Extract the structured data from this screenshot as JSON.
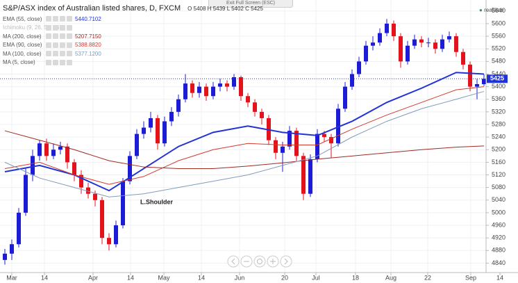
{
  "chart_data": {
    "type": "candlestick",
    "title": "S&P/ASX index of Australian listed shares, D, FXCM",
    "ohlc_letters": [
      "O",
      "H",
      "L",
      "C"
    ],
    "status": "realtime",
    "fullscreen_hint": "Exit Full Screen (ESC)",
    "annotation": "L.Shoulder",
    "up_color": "#1c1cd6",
    "down_color": "#e3121b",
    "grid": true,
    "xlim": [
      -0.7,
      69.3
    ],
    "xticks": [
      {
        "value": 1.0,
        "label": "Mar"
      },
      {
        "value": 5.7,
        "label": "14"
      },
      {
        "value": 12.7,
        "label": "Apr"
      },
      {
        "value": 18.1,
        "label": "14"
      },
      {
        "value": 22.9,
        "label": "May"
      },
      {
        "value": 28.3,
        "label": "14"
      },
      {
        "value": 33.8,
        "label": "Jun"
      },
      {
        "value": 40.3,
        "label": "20"
      },
      {
        "value": 44.8,
        "label": "Jul"
      },
      {
        "value": 50.5,
        "label": "18"
      },
      {
        "value": 55.6,
        "label": "Aug"
      },
      {
        "value": 60.9,
        "label": "22"
      },
      {
        "value": 67.1,
        "label": "Sep"
      },
      {
        "value": 71.3,
        "label": "14"
      }
    ],
    "ylim": [
      4810,
      5675
    ],
    "yticks": [
      4840,
      4880,
      4920,
      4960,
      5000,
      5040,
      5080,
      5120,
      5160,
      5200,
      5240,
      5280,
      5320,
      5360,
      5400,
      5440,
      5480,
      5520,
      5560,
      5600,
      5640
    ],
    "open": [
      4850,
      4870,
      4900,
      5000,
      5120,
      5180,
      5220,
      5180,
      5200,
      5210,
      5160,
      5120,
      5080,
      5060,
      5040,
      4920,
      4900,
      4960,
      5100,
      5180,
      5250,
      5270,
      5300,
      5220,
      5290,
      5320,
      5360,
      5410,
      5380,
      5400,
      5370,
      5400,
      5410,
      5400,
      5430,
      5370,
      5350,
      5320,
      5300,
      5230,
      5190,
      5210,
      5260,
      5180,
      5060,
      5170,
      5250,
      5240,
      5220,
      5330,
      5400,
      5440,
      5480,
      5530,
      5540,
      5570,
      5600,
      5560,
      5480,
      5530,
      5550,
      5540,
      5540,
      5520,
      5550,
      5560,
      5510,
      5470,
      5400,
      5408
    ],
    "high": [
      4885,
      4915,
      5015,
      5140,
      5200,
      5230,
      5235,
      5220,
      5225,
      5220,
      5170,
      5135,
      5095,
      5070,
      5050,
      4935,
      4975,
      5110,
      5195,
      5265,
      5290,
      5320,
      5310,
      5305,
      5335,
      5375,
      5440,
      5420,
      5415,
      5410,
      5415,
      5425,
      5420,
      5440,
      5435,
      5380,
      5360,
      5330,
      5310,
      5240,
      5225,
      5275,
      5270,
      5190,
      5185,
      5265,
      5260,
      5250,
      5345,
      5415,
      5455,
      5495,
      5545,
      5560,
      5585,
      5615,
      5610,
      5570,
      5545,
      5565,
      5560,
      5555,
      5550,
      5565,
      5575,
      5570,
      5520,
      5480,
      5425,
      5439
    ],
    "low": [
      4835,
      4850,
      4890,
      4990,
      5100,
      5165,
      5165,
      5170,
      5185,
      5140,
      5100,
      5060,
      5045,
      5020,
      4900,
      4880,
      4890,
      4950,
      5090,
      5170,
      5235,
      5255,
      5200,
      5210,
      5275,
      5305,
      5350,
      5365,
      5365,
      5355,
      5360,
      5385,
      5385,
      5390,
      5355,
      5335,
      5305,
      5280,
      5215,
      5170,
      5130,
      5200,
      5165,
      5040,
      5050,
      5160,
      5225,
      5175,
      5210,
      5320,
      5390,
      5430,
      5470,
      5515,
      5530,
      5560,
      5545,
      5460,
      5470,
      5520,
      5525,
      5525,
      5505,
      5510,
      5540,
      5495,
      5455,
      5385,
      5360,
      5402
    ],
    "close": [
      4870,
      4900,
      5000,
      5120,
      5180,
      5220,
      5180,
      5200,
      5210,
      5160,
      5120,
      5080,
      5060,
      5040,
      4920,
      4900,
      4960,
      5100,
      5180,
      5250,
      5270,
      5300,
      5220,
      5290,
      5320,
      5360,
      5410,
      5380,
      5400,
      5370,
      5400,
      5410,
      5400,
      5430,
      5370,
      5350,
      5320,
      5300,
      5230,
      5190,
      5210,
      5260,
      5180,
      5060,
      5170,
      5250,
      5240,
      5220,
      5330,
      5400,
      5440,
      5480,
      5530,
      5540,
      5570,
      5600,
      5560,
      5480,
      5530,
      5550,
      5540,
      5540,
      5520,
      5550,
      5560,
      5510,
      5470,
      5400,
      5408,
      5425
    ],
    "ma_x": [
      0,
      5,
      10,
      15,
      20,
      25,
      30,
      35,
      40,
      45,
      50,
      55,
      60,
      65,
      69
    ],
    "series": [
      {
        "name": "EMA (55, close)",
        "legend_value": "5440.7102",
        "color": "#2233d6",
        "width": 2,
        "values": [
          5130,
          5150,
          5120,
          5070,
          5140,
          5210,
          5255,
          5275,
          5255,
          5245,
          5290,
          5350,
          5395,
          5445,
          5440
        ]
      },
      {
        "name": "Ichimoku (9, 26, 52, 26)",
        "faded": true
      },
      {
        "name": "MA (200, close)",
        "legend_value": "5207.7150",
        "color": "#9e2a22",
        "width": 1,
        "values": [
          5260,
          5230,
          5200,
          5165,
          5145,
          5140,
          5140,
          5148,
          5158,
          5170,
          5180,
          5190,
          5200,
          5208,
          5212
        ]
      },
      {
        "name": "EMA (90, close)",
        "legend_value": "5388.8820",
        "color": "#d23a2e",
        "width": 1,
        "values": [
          5140,
          5160,
          5120,
          5090,
          5115,
          5165,
          5200,
          5220,
          5215,
          5215,
          5265,
          5310,
          5350,
          5390,
          5400
        ]
      },
      {
        "name": "MA (100, close)",
        "legend_value": "5377.1200",
        "color": "#7f9bbd",
        "width": 1,
        "values": [
          5160,
          5110,
          5080,
          5050,
          5060,
          5080,
          5100,
          5120,
          5150,
          5180,
          5240,
          5290,
          5330,
          5360,
          5385
        ]
      },
      {
        "name": "MA (5, close)"
      }
    ]
  }
}
